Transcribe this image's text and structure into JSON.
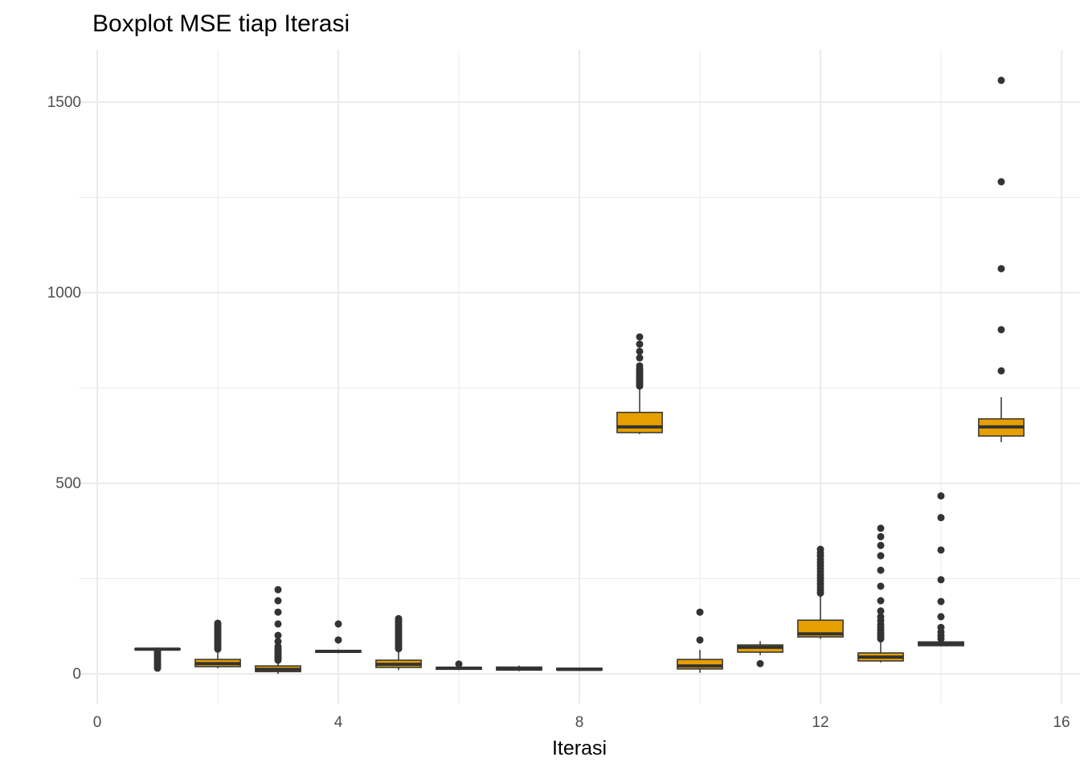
{
  "chart_data": {
    "type": "boxplot",
    "title": "Boxplot MSE tiap Iterasi",
    "x_label": "Iterasi",
    "fill_color": "#E69F00",
    "line_color": "#333333",
    "grid": true,
    "xlim": [
      -0.3,
      16.3
    ],
    "xticks": [
      0,
      4,
      8,
      12,
      16
    ],
    "x_minor_ticks": [
      2,
      6,
      10,
      14
    ],
    "ylim": [
      -78,
      1637
    ],
    "yticks": [
      0,
      500,
      1000,
      1500
    ],
    "y_minor_ticks": [
      250,
      750,
      1250
    ],
    "box_width": 0.75,
    "boxes": [
      {
        "x": 1,
        "whisker_low": 63,
        "q1": 64,
        "median": 65,
        "q3": 66,
        "whisker_high": 67,
        "outliers": [
          15,
          20,
          25,
          30,
          35,
          40,
          45,
          50,
          55,
          60
        ]
      },
      {
        "x": 2,
        "whisker_low": 15,
        "q1": 19,
        "median": 27,
        "q3": 38,
        "whisker_high": 61,
        "outliers": [
          65,
          70,
          75,
          80,
          85,
          90,
          95,
          100,
          105,
          110,
          115,
          120,
          125,
          130,
          133
        ]
      },
      {
        "x": 3,
        "whisker_low": 0,
        "q1": 6,
        "median": 12,
        "q3": 21,
        "whisker_high": 34,
        "outliers": [
          36,
          40,
          44,
          48,
          52,
          56,
          60,
          66,
          72,
          85,
          101,
          131,
          162,
          192,
          221
        ]
      },
      {
        "x": 4,
        "whisker_low": 54,
        "q1": 57,
        "median": 59,
        "q3": 61,
        "whisker_high": 64,
        "outliers": [
          89,
          131
        ]
      },
      {
        "x": 5,
        "whisker_low": 10,
        "q1": 17,
        "median": 25,
        "q3": 36,
        "whisker_high": 62,
        "outliers": [
          66,
          70,
          75,
          80,
          85,
          90,
          95,
          100,
          105,
          110,
          115,
          120,
          125,
          130,
          135,
          140,
          145
        ]
      },
      {
        "x": 6,
        "whisker_low": 10,
        "q1": 12,
        "median": 15,
        "q3": 17,
        "whisker_high": 20,
        "outliers": [
          26
        ]
      },
      {
        "x": 7,
        "whisker_low": 7,
        "q1": 10,
        "median": 14,
        "q3": 18,
        "whisker_high": 22,
        "outliers": []
      },
      {
        "x": 8,
        "whisker_low": 8,
        "q1": 10,
        "median": 12,
        "q3": 15,
        "whisker_high": 17,
        "outliers": []
      },
      {
        "x": 9,
        "whisker_low": 629,
        "q1": 633,
        "median": 648,
        "q3": 686,
        "whisker_high": 747,
        "outliers": [
          755,
          760,
          765,
          770,
          775,
          780,
          785,
          790,
          795,
          800,
          808,
          829,
          846,
          865,
          884
        ]
      },
      {
        "x": 10,
        "whisker_low": 3,
        "q1": 13,
        "median": 21,
        "q3": 38,
        "whisker_high": 63,
        "outliers": [
          89,
          162
        ]
      },
      {
        "x": 11,
        "whisker_low": 49,
        "q1": 57,
        "median": 70,
        "q3": 76,
        "whisker_high": 86,
        "outliers": [
          27
        ]
      },
      {
        "x": 12,
        "whisker_low": 92,
        "q1": 97,
        "median": 105,
        "q3": 141,
        "whisker_high": 207,
        "outliers": [
          212,
          220,
          228,
          236,
          244,
          252,
          260,
          268,
          276,
          284,
          292,
          300,
          310,
          318,
          327
        ]
      },
      {
        "x": 13,
        "whisker_low": 30,
        "q1": 34,
        "median": 44,
        "q3": 55,
        "whisker_high": 88,
        "outliers": [
          92,
          97,
          102,
          108,
          115,
          122,
          130,
          140,
          150,
          165,
          192,
          230,
          272,
          310,
          337,
          360,
          382
        ]
      },
      {
        "x": 14,
        "whisker_low": 72,
        "q1": 74,
        "median": 78,
        "q3": 84,
        "whisker_high": 88,
        "outliers": [
          92,
          100,
          110,
          122,
          150,
          190,
          247,
          325,
          410,
          467
        ]
      },
      {
        "x": 15,
        "whisker_low": 608,
        "q1": 624,
        "median": 648,
        "q3": 669,
        "whisker_high": 726,
        "outliers": [
          795,
          903,
          1063,
          1291,
          1557
        ]
      }
    ]
  }
}
